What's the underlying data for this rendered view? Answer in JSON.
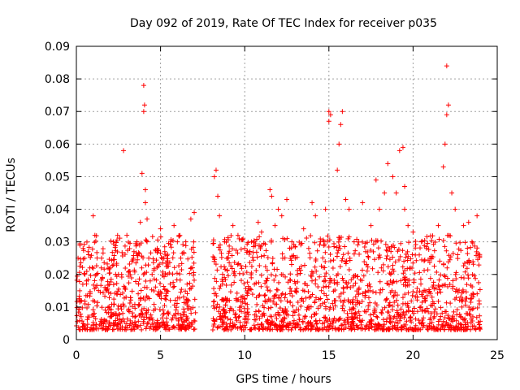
{
  "chart_data": {
    "type": "scatter",
    "title": "Day 092 of 2019, Rate Of TEC Index for receiver p035",
    "xlabel": "GPS time / hours",
    "ylabel": "ROTI / TECUs",
    "xlim": [
      0,
      25
    ],
    "ylim": [
      0,
      0.09
    ],
    "xticks": [
      0,
      5,
      10,
      15,
      20,
      25
    ],
    "yticks": [
      0,
      0.01,
      0.02,
      0.03,
      0.04,
      0.05,
      0.06,
      0.07,
      0.08,
      0.09
    ],
    "xtick_labels": [
      "0",
      "5",
      "10",
      "15",
      "20",
      "25"
    ],
    "ytick_labels": [
      "0",
      "0.01",
      "0.02",
      "0.03",
      "0.04",
      "0.05",
      "0.06",
      "0.07",
      "0.08",
      "0.09"
    ],
    "grid": true,
    "marker": "+",
    "marker_color": "#ff0000",
    "data_gap_hours": [
      7.1,
      8.1
    ],
    "series": [
      {
        "name": "ROTI",
        "x": [
          0.1,
          0.2,
          0.3,
          0.4,
          0.5,
          0.6,
          0.8,
          1.0,
          1.1,
          1.2,
          1.5,
          1.8,
          2.0,
          2.2,
          2.5,
          2.8,
          3.0,
          3.3,
          3.6,
          3.8,
          3.9,
          4.0,
          4.0,
          4.05,
          4.1,
          4.1,
          4.2,
          4.2,
          4.3,
          4.5,
          4.8,
          5.0,
          5.2,
          5.4,
          5.6,
          5.8,
          6.0,
          6.2,
          6.5,
          6.8,
          7.0,
          8.2,
          8.3,
          8.4,
          8.5,
          8.8,
          9.0,
          9.3,
          9.6,
          10.0,
          10.4,
          10.8,
          11.0,
          11.5,
          11.6,
          11.8,
          12.0,
          12.2,
          12.5,
          12.8,
          13.0,
          13.5,
          13.8,
          14.0,
          14.2,
          14.5,
          14.8,
          15.0,
          15.0,
          15.1,
          15.5,
          15.6,
          15.7,
          15.8,
          16.0,
          16.2,
          16.5,
          17.0,
          17.5,
          17.8,
          18.0,
          18.3,
          18.5,
          18.8,
          19.0,
          19.2,
          19.4,
          19.5,
          19.5,
          19.7,
          20.0,
          20.5,
          20.8,
          21.0,
          21.5,
          21.8,
          21.9,
          22.0,
          22.0,
          22.1,
          22.3,
          22.5,
          23.0,
          23.3,
          23.5,
          23.8
        ],
        "y": [
          0.025,
          0.015,
          0.012,
          0.028,
          0.02,
          0.018,
          0.022,
          0.038,
          0.032,
          0.02,
          0.025,
          0.015,
          0.022,
          0.03,
          0.02,
          0.058,
          0.032,
          0.024,
          0.03,
          0.036,
          0.051,
          0.07,
          0.078,
          0.072,
          0.046,
          0.042,
          0.037,
          0.03,
          0.025,
          0.02,
          0.028,
          0.034,
          0.025,
          0.02,
          0.03,
          0.035,
          0.03,
          0.025,
          0.03,
          0.037,
          0.039,
          0.05,
          0.052,
          0.044,
          0.038,
          0.03,
          0.025,
          0.035,
          0.032,
          0.028,
          0.03,
          0.036,
          0.033,
          0.046,
          0.044,
          0.035,
          0.04,
          0.038,
          0.043,
          0.03,
          0.025,
          0.034,
          0.028,
          0.042,
          0.038,
          0.03,
          0.04,
          0.07,
          0.067,
          0.069,
          0.052,
          0.06,
          0.066,
          0.07,
          0.043,
          0.04,
          0.03,
          0.042,
          0.035,
          0.049,
          0.04,
          0.045,
          0.054,
          0.05,
          0.045,
          0.058,
          0.059,
          0.047,
          0.04,
          0.035,
          0.033,
          0.03,
          0.028,
          0.025,
          0.035,
          0.053,
          0.06,
          0.069,
          0.084,
          0.072,
          0.045,
          0.04,
          0.035,
          0.036,
          0.03,
          0.038
        ]
      }
    ],
    "background_band": {
      "x_segments": [
        [
          0,
          7.1
        ],
        [
          8.1,
          24
        ]
      ],
      "y_range": [
        0.003,
        0.032
      ]
    }
  }
}
